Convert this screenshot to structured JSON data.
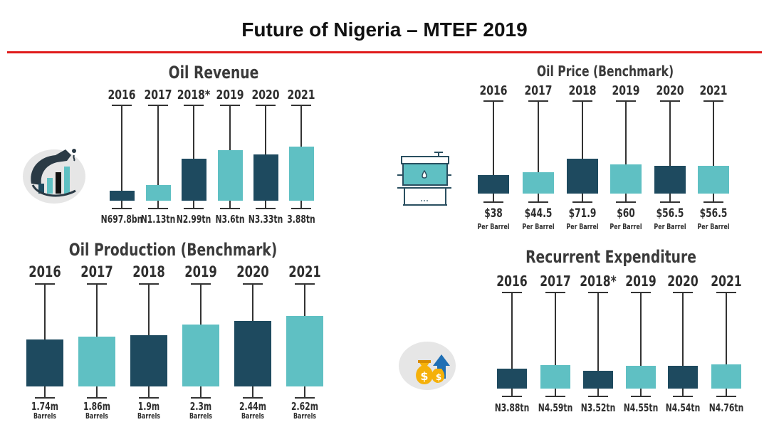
{
  "header": {
    "title": "Future of Nigeria – MTEF 2019"
  },
  "colors": {
    "dark": "#1e4a5f",
    "light": "#5fc0c3",
    "rule": "#e01b1b"
  },
  "icons": {
    "oil_revenue": "fuel-nozzle-growth-icon",
    "oil_price": "oil-tank-icon",
    "recurrent": "money-bags-arrow-icon"
  },
  "chart_data": [
    {
      "id": "oil-revenue",
      "type": "bar",
      "title": "Oil Revenue",
      "categories": [
        "2016",
        "2017",
        "2018*",
        "2019",
        "2020",
        "2021"
      ],
      "values": [
        0.6978,
        1.13,
        2.99,
        3.6,
        3.33,
        3.88
      ],
      "value_labels": [
        "N697.8bn",
        "N1.13tn",
        "N2.99tn",
        "N3.6tn",
        "N3.33tn",
        "3.88tn"
      ],
      "units": [],
      "bar_colors": [
        "dark",
        "light",
        "dark",
        "light",
        "dark",
        "light"
      ]
    },
    {
      "id": "oil-price",
      "type": "bar",
      "title": "Oil Price (Benchmark)",
      "categories": [
        "2016",
        "2017",
        "2018",
        "2019",
        "2020",
        "2021"
      ],
      "values": [
        38,
        44.5,
        71.9,
        60,
        56.5,
        56.5
      ],
      "value_labels": [
        "$38",
        "$44.5",
        "$71.9",
        "$60",
        "$56.5",
        "$56.5"
      ],
      "units": [
        "Per Barrel",
        "Per Barrel",
        "Per Barrel",
        "Per Barrel",
        "Per Barrel",
        "Per Barrel"
      ],
      "bar_colors": [
        "dark",
        "light",
        "dark",
        "light",
        "dark",
        "light"
      ]
    },
    {
      "id": "oil-production",
      "type": "bar",
      "title": "Oil Production (Benchmark)",
      "categories": [
        "2016",
        "2017",
        "2018",
        "2019",
        "2020",
        "2021"
      ],
      "values": [
        1.74,
        1.86,
        1.9,
        2.3,
        2.44,
        2.62
      ],
      "value_labels": [
        "1.74m",
        "1.86m",
        "1.9m",
        "2.3m",
        "2.44m",
        "2.62m"
      ],
      "units": [
        "Barrels",
        "Barrels",
        "Barrels",
        "Barrels",
        "Barrels",
        "Barrels"
      ],
      "bar_colors": [
        "dark",
        "light",
        "dark",
        "light",
        "dark",
        "light"
      ]
    },
    {
      "id": "recurrent-expenditure",
      "type": "bar",
      "title": "Recurrent Expenditure",
      "categories": [
        "2016",
        "2017",
        "2018*",
        "2019",
        "2020",
        "2021"
      ],
      "values": [
        3.88,
        4.59,
        3.52,
        4.55,
        4.54,
        4.76
      ],
      "value_labels": [
        "N3.88tn",
        "N4.59tn",
        "N3.52tn",
        "N4.55tn",
        "N4.54tn",
        "N4.76tn"
      ],
      "units": [],
      "bar_colors": [
        "dark",
        "light",
        "dark",
        "light",
        "dark",
        "light"
      ]
    }
  ]
}
